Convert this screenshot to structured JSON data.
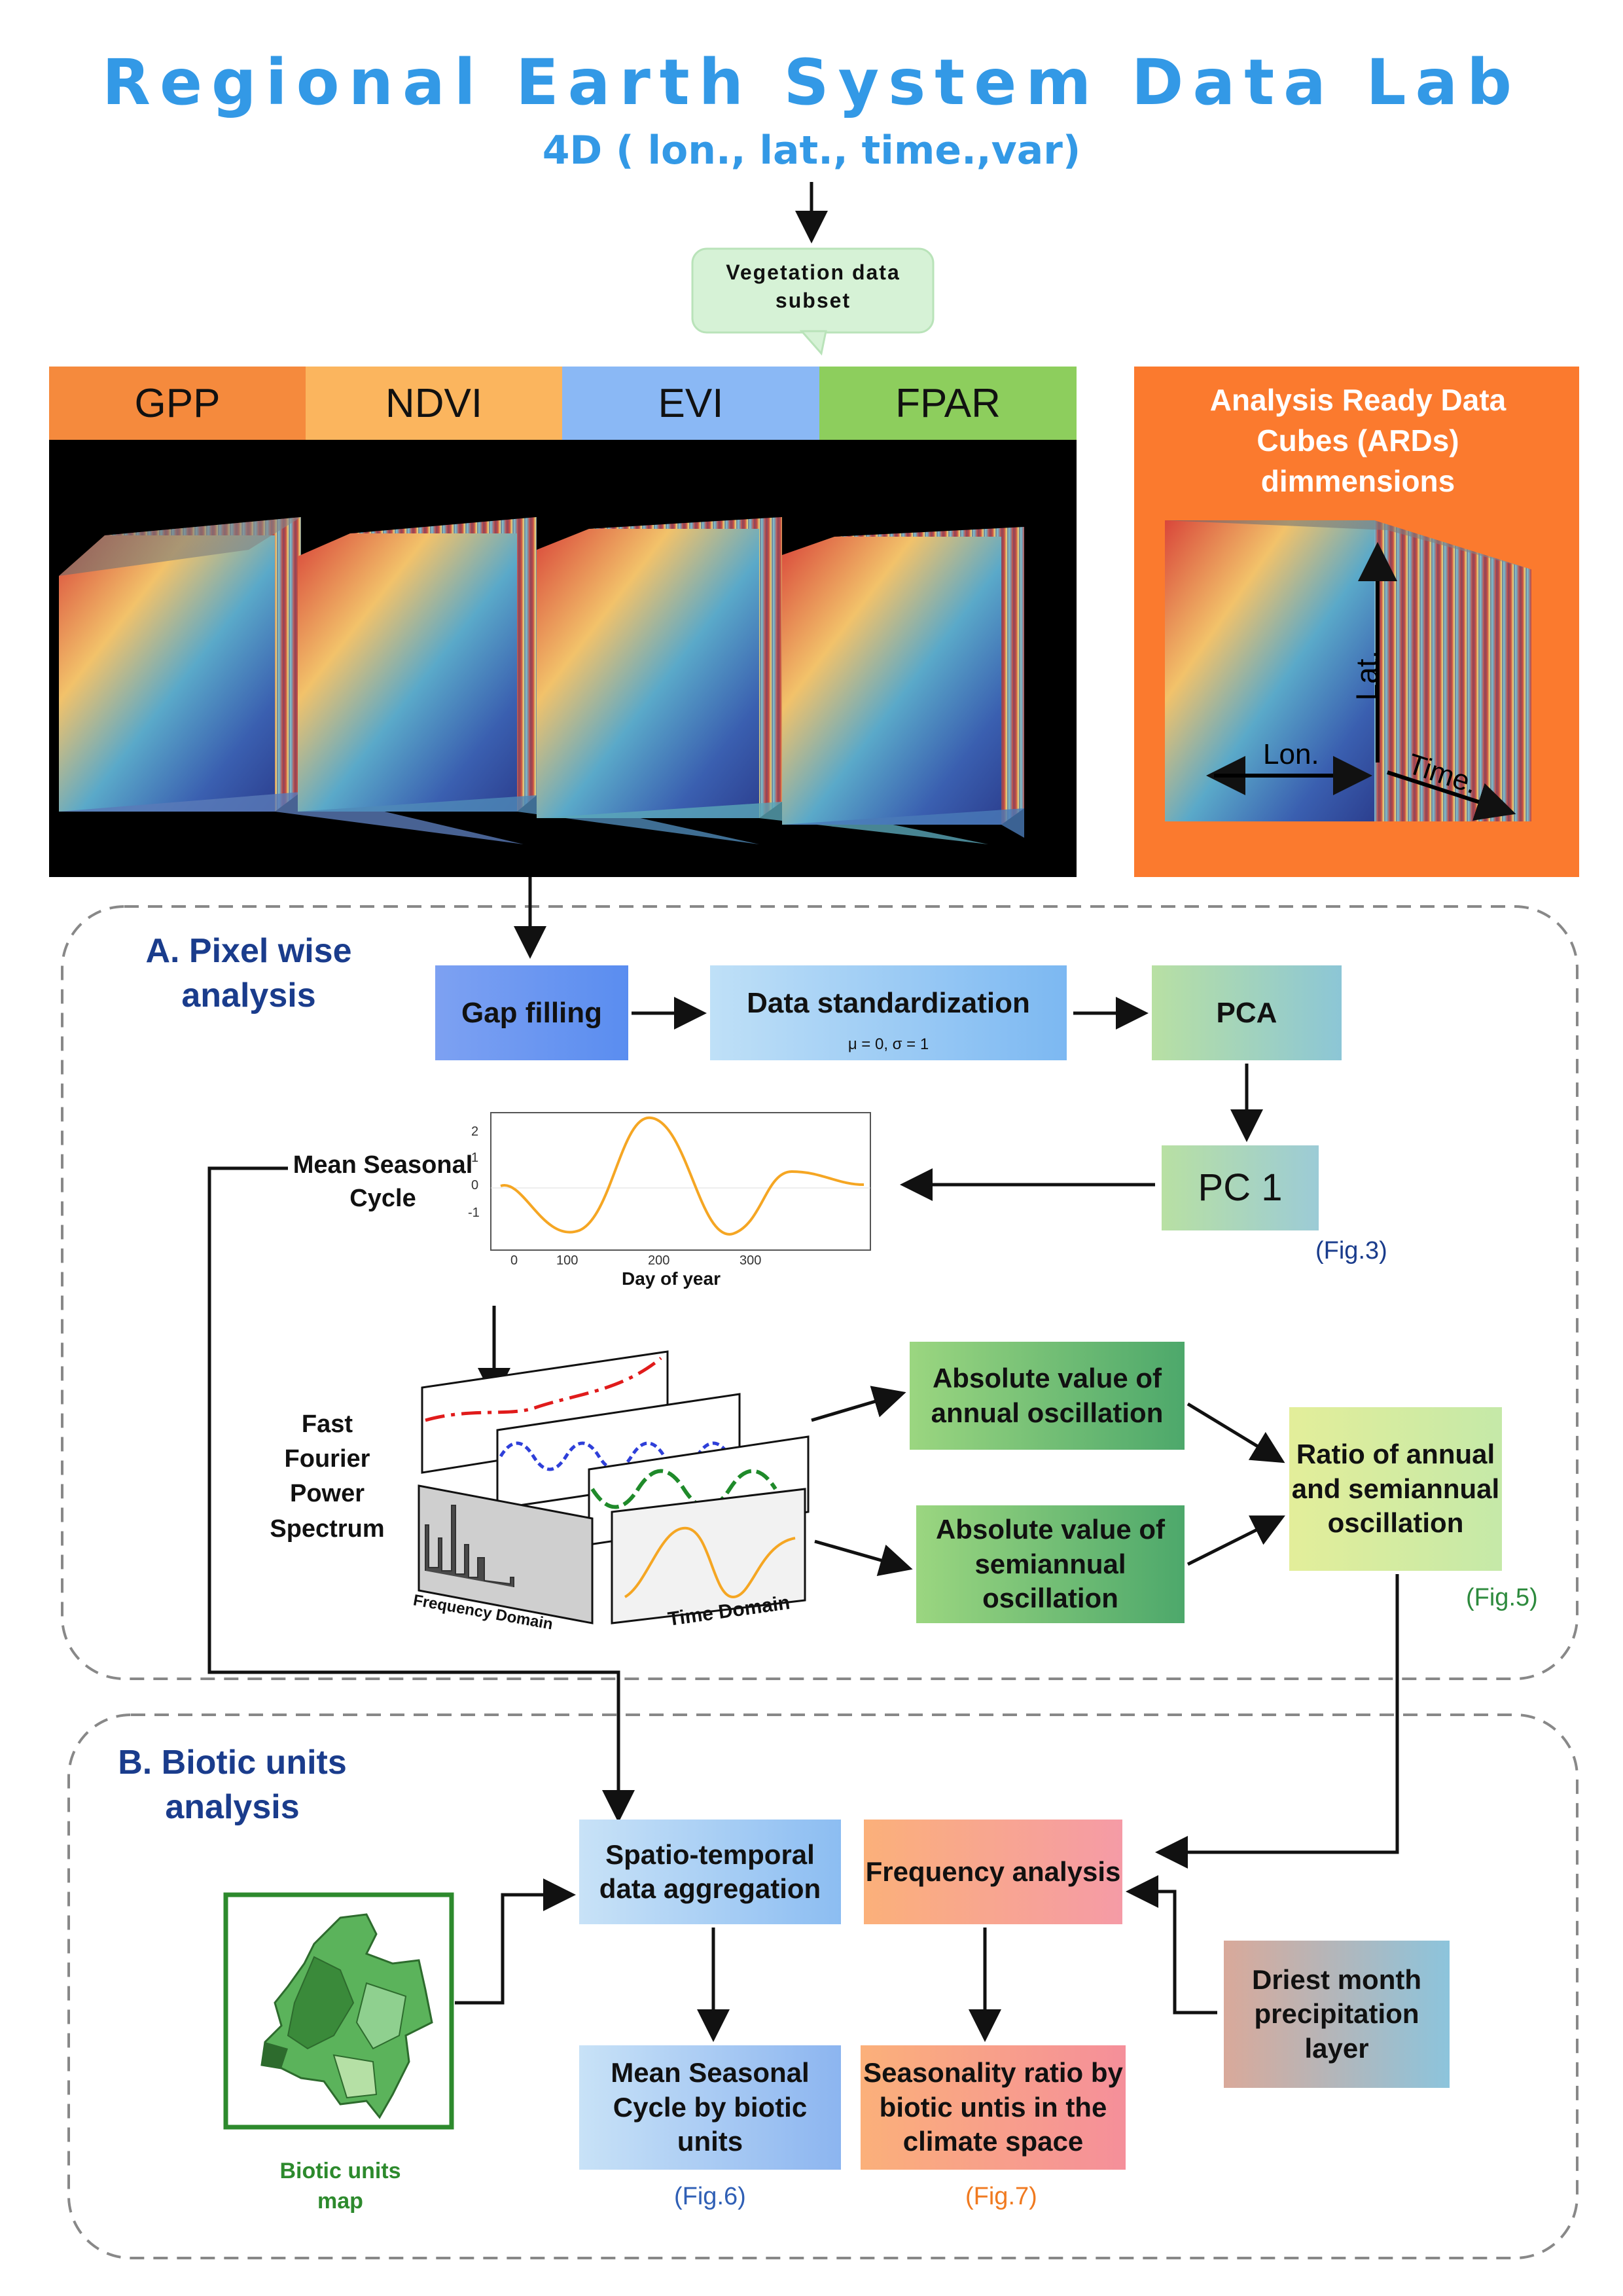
{
  "header": {
    "title": "Regional Earth System Data Lab",
    "subtitle": "4D ( lon., lat., time.,var)",
    "callout": "Vegetation data subset"
  },
  "variables": [
    "GPP",
    "NDVI",
    "EVI",
    "FPAR"
  ],
  "ard_panel": {
    "title": "Analysis Ready Data Cubes (ARDs) dimmensions",
    "axis_lat": "Lat.",
    "axis_lon": "Lon.",
    "axis_time": "Time."
  },
  "section_a": {
    "title": "A. Pixel wise analysis",
    "gap_filling": "Gap filling",
    "data_std": "Data standardization",
    "data_std_formula": "μ = 0, σ = 1",
    "pca": "PCA",
    "pc1": "PC 1",
    "fig3": "(Fig.3)",
    "mean_seasonal_cycle": "Mean Seasonal Cycle",
    "msc_xlabel": "Day of year",
    "msc_xticks": [
      "0",
      "100",
      "200",
      "300"
    ],
    "msc_yticks": [
      "2",
      "1",
      "0",
      "-1"
    ],
    "fft_label": "Fast Fourier Power Spectrum",
    "freq_domain": "Frequency Domain",
    "time_domain": "Time Domain",
    "abs_annual": "Absolute value of annual oscillation",
    "abs_semiannual": "Absolute value of semiannual oscillation",
    "ratio": "Ratio of annual and semiannual oscillation",
    "fig5": "(Fig.5)"
  },
  "section_b": {
    "title": "B. Biotic units analysis",
    "spatio_temporal": "Spatio-temporal data aggregation",
    "frequency_analysis": "Frequency analysis",
    "driest_month": "Driest month precipitation layer",
    "msc_biotic": "Mean Seasonal Cycle by biotic units",
    "seasonality_ratio": "Seasonality ratio by biotic untis in the climate space",
    "fig6": "(Fig.6)",
    "fig7": "(Fig.7)",
    "biotic_map": "Biotic units map"
  },
  "colors": {
    "title_blue": "#3399e6",
    "section_navy": "#1a3c8c",
    "gpp": "#f58a3d",
    "ndvi": "#fbb55e",
    "evi": "#8ab8f5",
    "fpar": "#8dce5d",
    "ard_orange": "#fb7a2e",
    "fig5_green": "#2d8a3d",
    "fig6_blue": "#2f5fb5",
    "fig7_orange": "#f07a20"
  }
}
